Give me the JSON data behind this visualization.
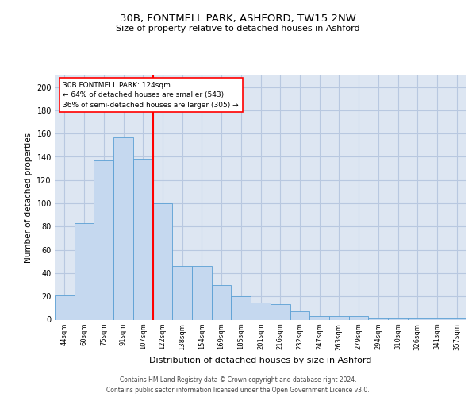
{
  "title1": "30B, FONTMELL PARK, ASHFORD, TW15 2NW",
  "title2": "Size of property relative to detached houses in Ashford",
  "xlabel": "Distribution of detached houses by size in Ashford",
  "ylabel": "Number of detached properties",
  "categories": [
    "44sqm",
    "60sqm",
    "75sqm",
    "91sqm",
    "107sqm",
    "122sqm",
    "138sqm",
    "154sqm",
    "169sqm",
    "185sqm",
    "201sqm",
    "216sqm",
    "232sqm",
    "247sqm",
    "263sqm",
    "279sqm",
    "294sqm",
    "310sqm",
    "326sqm",
    "341sqm",
    "357sqm"
  ],
  "values": [
    21,
    83,
    137,
    157,
    138,
    100,
    46,
    46,
    30,
    20,
    15,
    13,
    7,
    3,
    3,
    3,
    1,
    1,
    1,
    1,
    1
  ],
  "bar_color": "#c5d8ef",
  "bar_edge_color": "#5a9fd4",
  "vline_x_index": 5,
  "vline_color": "red",
  "annotation_text": "30B FONTMELL PARK: 124sqm\n← 64% of detached houses are smaller (543)\n36% of semi-detached houses are larger (305) →",
  "annotation_box_color": "white",
  "annotation_box_edge": "red",
  "ylim": [
    0,
    210
  ],
  "yticks": [
    0,
    20,
    40,
    60,
    80,
    100,
    120,
    140,
    160,
    180,
    200
  ],
  "background_color": "#dde6f2",
  "grid_color": "#b8c8e0",
  "footer1": "Contains HM Land Registry data © Crown copyright and database right 2024.",
  "footer2": "Contains public sector information licensed under the Open Government Licence v3.0."
}
